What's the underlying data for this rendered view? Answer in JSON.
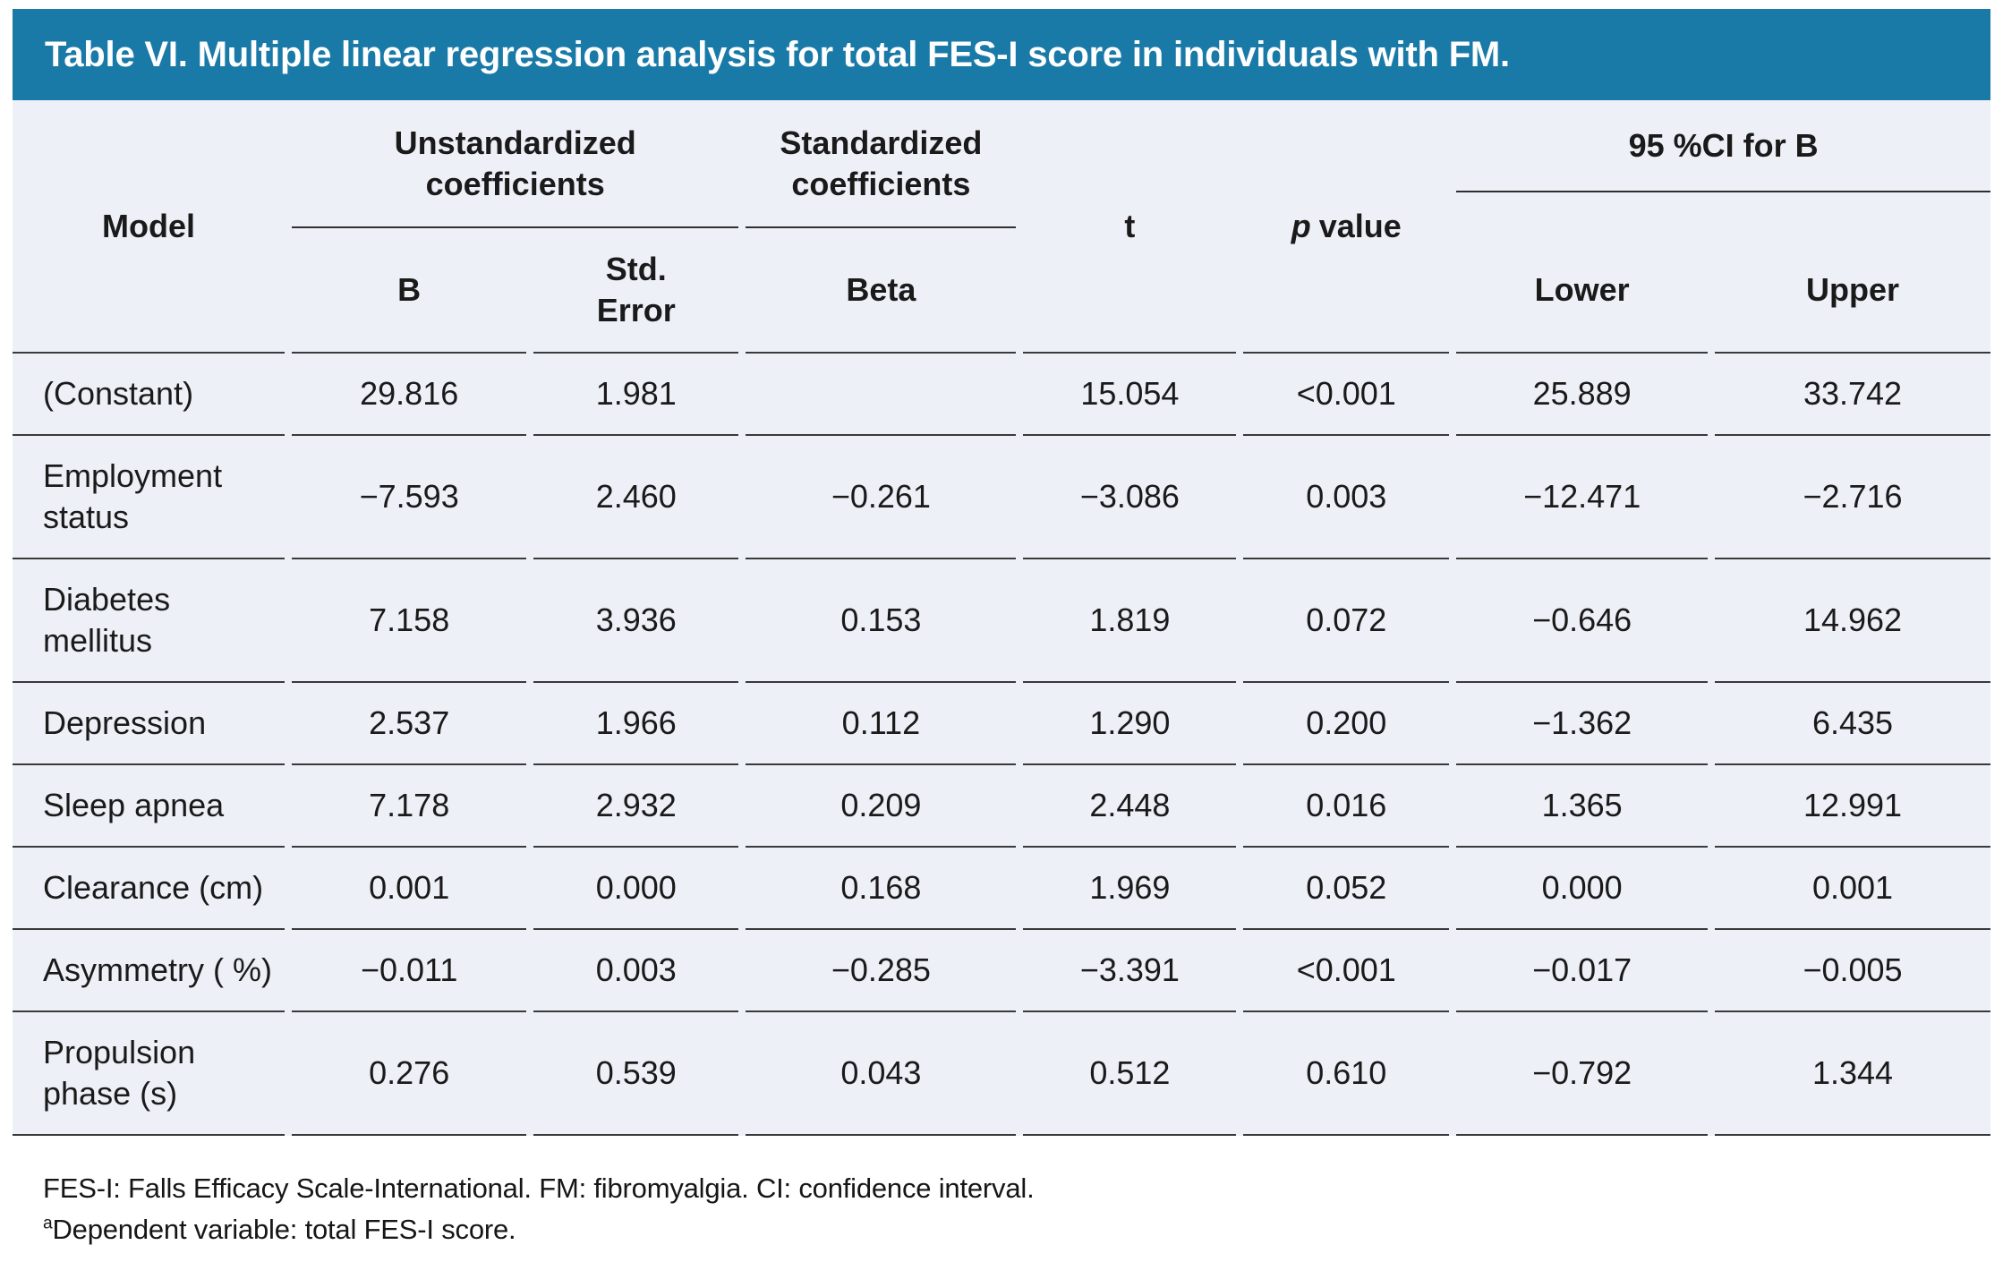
{
  "title": "Table VI. Multiple linear regression analysis for total FES-I score in individuals with FM.",
  "colors": {
    "title_bar_bg": "#197aa8",
    "title_text": "#ffffff",
    "table_body_bg": "#edf0f7",
    "rule": "#3a3a3a",
    "text": "#1a1a1a"
  },
  "header": {
    "model": "Model",
    "unstandardized": "Unstandardized\ncoefficients",
    "standardized": "Standardized\ncoefficients",
    "t": "t",
    "p_italic": "p",
    "p_rest": "value",
    "ci": "95 %CI for B",
    "sub": {
      "b": "B",
      "std_error": "Std.\nError",
      "beta": "Beta",
      "lower": "Lower",
      "upper": "Upper"
    }
  },
  "rows": [
    {
      "model": "(Constant)",
      "b": "29.816",
      "std_error": "1.981",
      "beta": "",
      "t": "15.054",
      "p": "<0.001",
      "lower": "25.889",
      "upper": "33.742"
    },
    {
      "model": "Employment status",
      "b": "−7.593",
      "std_error": "2.460",
      "beta": "−0.261",
      "t": "−3.086",
      "p": "0.003",
      "lower": "−12.471",
      "upper": "−2.716"
    },
    {
      "model": "Diabetes mellitus",
      "b": "7.158",
      "std_error": "3.936",
      "beta": "0.153",
      "t": "1.819",
      "p": "0.072",
      "lower": "−0.646",
      "upper": "14.962"
    },
    {
      "model": "Depression",
      "b": "2.537",
      "std_error": "1.966",
      "beta": "0.112",
      "t": "1.290",
      "p": "0.200",
      "lower": "−1.362",
      "upper": "6.435"
    },
    {
      "model": "Sleep apnea",
      "b": "7.178",
      "std_error": "2.932",
      "beta": "0.209",
      "t": "2.448",
      "p": "0.016",
      "lower": "1.365",
      "upper": "12.991"
    },
    {
      "model": "Clearance (cm)",
      "b": "0.001",
      "std_error": "0.000",
      "beta": "0.168",
      "t": "1.969",
      "p": "0.052",
      "lower": "0.000",
      "upper": "0.001"
    },
    {
      "model": "Asymmetry ( %)",
      "b": "−0.011",
      "std_error": "0.003",
      "beta": "−0.285",
      "t": "−3.391",
      "p": "<0.001",
      "lower": "−0.017",
      "upper": "−0.005"
    },
    {
      "model": "Propulsion phase (s)",
      "b": "0.276",
      "std_error": "0.539",
      "beta": "0.043",
      "t": "0.512",
      "p": "0.610",
      "lower": "−0.792",
      "upper": "1.344"
    }
  ],
  "footnotes": {
    "line1": "FES-I: Falls Efficacy Scale-International. FM: fibromyalgia. CI: confidence interval.",
    "sup": "a",
    "line2": "Dependent variable: total FES-I score."
  }
}
